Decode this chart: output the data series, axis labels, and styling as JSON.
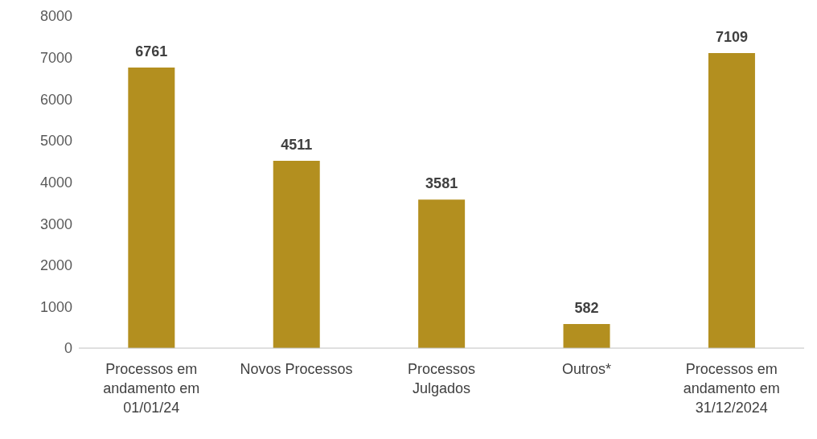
{
  "chart_data": {
    "type": "bar",
    "categories": [
      "Processos em andamento em 01/01/24",
      "Novos Processos",
      "Processos Julgados",
      "Outros*",
      "Processos em andamento em 31/12/2024"
    ],
    "values": [
      6761,
      4511,
      3581,
      582,
      7109
    ],
    "color": "#b38f1f",
    "ylim": [
      0,
      8000
    ],
    "yticks": [
      0,
      1000,
      2000,
      3000,
      4000,
      5000,
      6000,
      7000,
      8000
    ],
    "grid": false,
    "data_labels": true
  }
}
